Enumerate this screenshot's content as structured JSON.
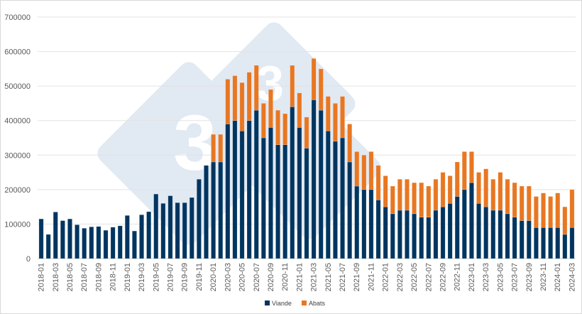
{
  "chart_data": {
    "type": "bar",
    "stacked": true,
    "title": "",
    "xlabel": "",
    "ylabel": "",
    "ylim": [
      0,
      700000
    ],
    "yticks": [
      0,
      100000,
      200000,
      300000,
      400000,
      500000,
      600000,
      700000
    ],
    "grid": true,
    "legend_position": "bottom",
    "categories": [
      "2018-01",
      "2018-02",
      "2018-03",
      "2018-04",
      "2018-05",
      "2018-06",
      "2018-07",
      "2018-08",
      "2018-09",
      "2018-10",
      "2018-11",
      "2018-12",
      "2019-01",
      "2019-02",
      "2019-03",
      "2019-04",
      "2019-05",
      "2019-06",
      "2019-07",
      "2019-08",
      "2019-09",
      "2019-10",
      "2019-11",
      "2019-12",
      "2020-01",
      "2020-02",
      "2020-03",
      "2020-04",
      "2020-05",
      "2020-06",
      "2020-07",
      "2020-08",
      "2020-09",
      "2020-10",
      "2020-11",
      "2020-12",
      "2021-01",
      "2021-02",
      "2021-03",
      "2021-04",
      "2021-05",
      "2021-06",
      "2021-07",
      "2021-08",
      "2021-09",
      "2021-10",
      "2021-11",
      "2021-12",
      "2022-01",
      "2022-02",
      "2022-03",
      "2022-04",
      "2022-05",
      "2022-06",
      "2022-07",
      "2022-08",
      "2022-09",
      "2022-10",
      "2022-11",
      "2022-12",
      "2023-01",
      "2023-02",
      "2023-03",
      "2023-04",
      "2023-05",
      "2023-06",
      "2023-07",
      "2023-08",
      "2023-09",
      "2023-10",
      "2023-11",
      "2023-12",
      "2024-01",
      "2024-02",
      "2024-03"
    ],
    "series": [
      {
        "name": "Viande",
        "color": "#003560",
        "values": [
          115000,
          70000,
          135000,
          110000,
          115000,
          98000,
          88000,
          92000,
          93000,
          82000,
          91000,
          95000,
          125000,
          80000,
          127000,
          136000,
          187000,
          160000,
          182000,
          162000,
          162000,
          177000,
          230000,
          270000,
          280000,
          280000,
          390000,
          400000,
          370000,
          400000,
          430000,
          350000,
          380000,
          330000,
          330000,
          440000,
          380000,
          320000,
          460000,
          430000,
          370000,
          340000,
          350000,
          280000,
          210000,
          200000,
          200000,
          170000,
          150000,
          130000,
          140000,
          140000,
          130000,
          120000,
          120000,
          140000,
          150000,
          160000,
          180000,
          200000,
          220000,
          160000,
          150000,
          140000,
          140000,
          130000,
          120000,
          110000,
          110000,
          90000,
          90000,
          90000,
          90000,
          70000,
          90000
        ]
      },
      {
        "name": "Abats",
        "color": "#E87722",
        "values": [
          0,
          0,
          0,
          0,
          0,
          0,
          0,
          0,
          0,
          0,
          0,
          0,
          0,
          0,
          0,
          0,
          0,
          0,
          0,
          0,
          0,
          0,
          0,
          0,
          80000,
          80000,
          130000,
          130000,
          140000,
          140000,
          130000,
          100000,
          110000,
          100000,
          90000,
          120000,
          100000,
          90000,
          120000,
          120000,
          100000,
          110000,
          120000,
          110000,
          100000,
          100000,
          110000,
          100000,
          90000,
          80000,
          90000,
          90000,
          90000,
          100000,
          90000,
          90000,
          100000,
          80000,
          100000,
          110000,
          90000,
          90000,
          110000,
          90000,
          110000,
          100000,
          100000,
          100000,
          100000,
          90000,
          100000,
          90000,
          100000,
          80000,
          110000
        ]
      }
    ]
  },
  "watermark": {
    "text": "3"
  }
}
